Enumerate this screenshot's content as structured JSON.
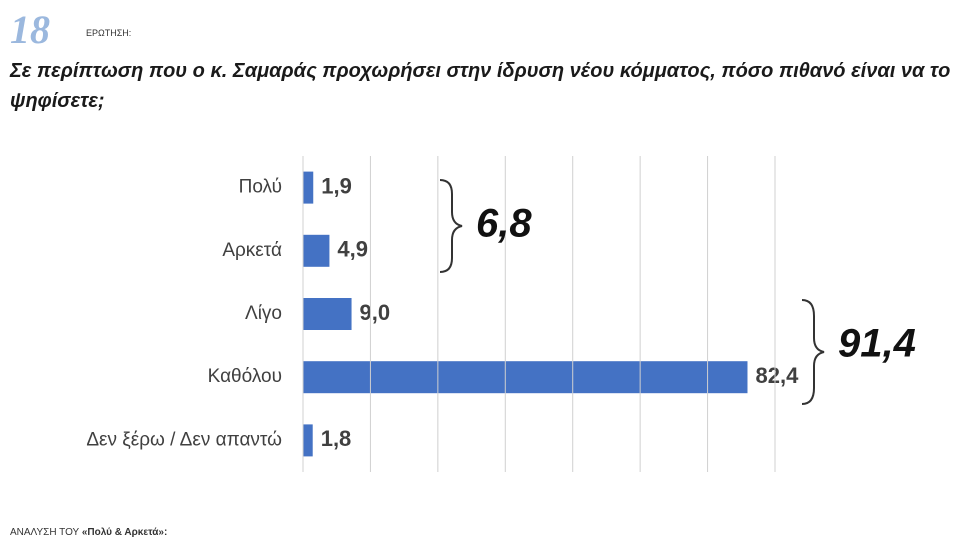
{
  "question_number": "18",
  "question_label": "ΕΡΩΤΗΣΗ:",
  "chart_data": {
    "type": "barh",
    "title": "Σε περίπτωση που ο κ. Σαμαράς προχωρήσει στην ίδρυση νέου κόμματος, πόσο πιθανό είναι να το ψηφίσετε;",
    "categories": [
      "Πολύ",
      "Αρκετά",
      "Λίγο",
      "Καθόλου",
      "Δεν ξέρω / Δεν απαντώ"
    ],
    "values": [
      1.9,
      4.9,
      9.0,
      82.4,
      1.8
    ],
    "value_labels": [
      "1,9",
      "4,9",
      "9,0",
      "82,4",
      "1,8"
    ],
    "color": "#4472c4",
    "xlim": [
      0,
      87.5
    ],
    "xticks": [
      0,
      12.5,
      25,
      37.5,
      50,
      62.5,
      75,
      87.5
    ],
    "grid": true,
    "annotations": [
      {
        "text": "6,8"
      },
      {
        "text": "91,4"
      }
    ]
  },
  "footer": {
    "prefix": "ΑΝΑΛΥΣΗ ΤΟΥ",
    "highlight": "«Πολύ & Αρκετά»:"
  }
}
